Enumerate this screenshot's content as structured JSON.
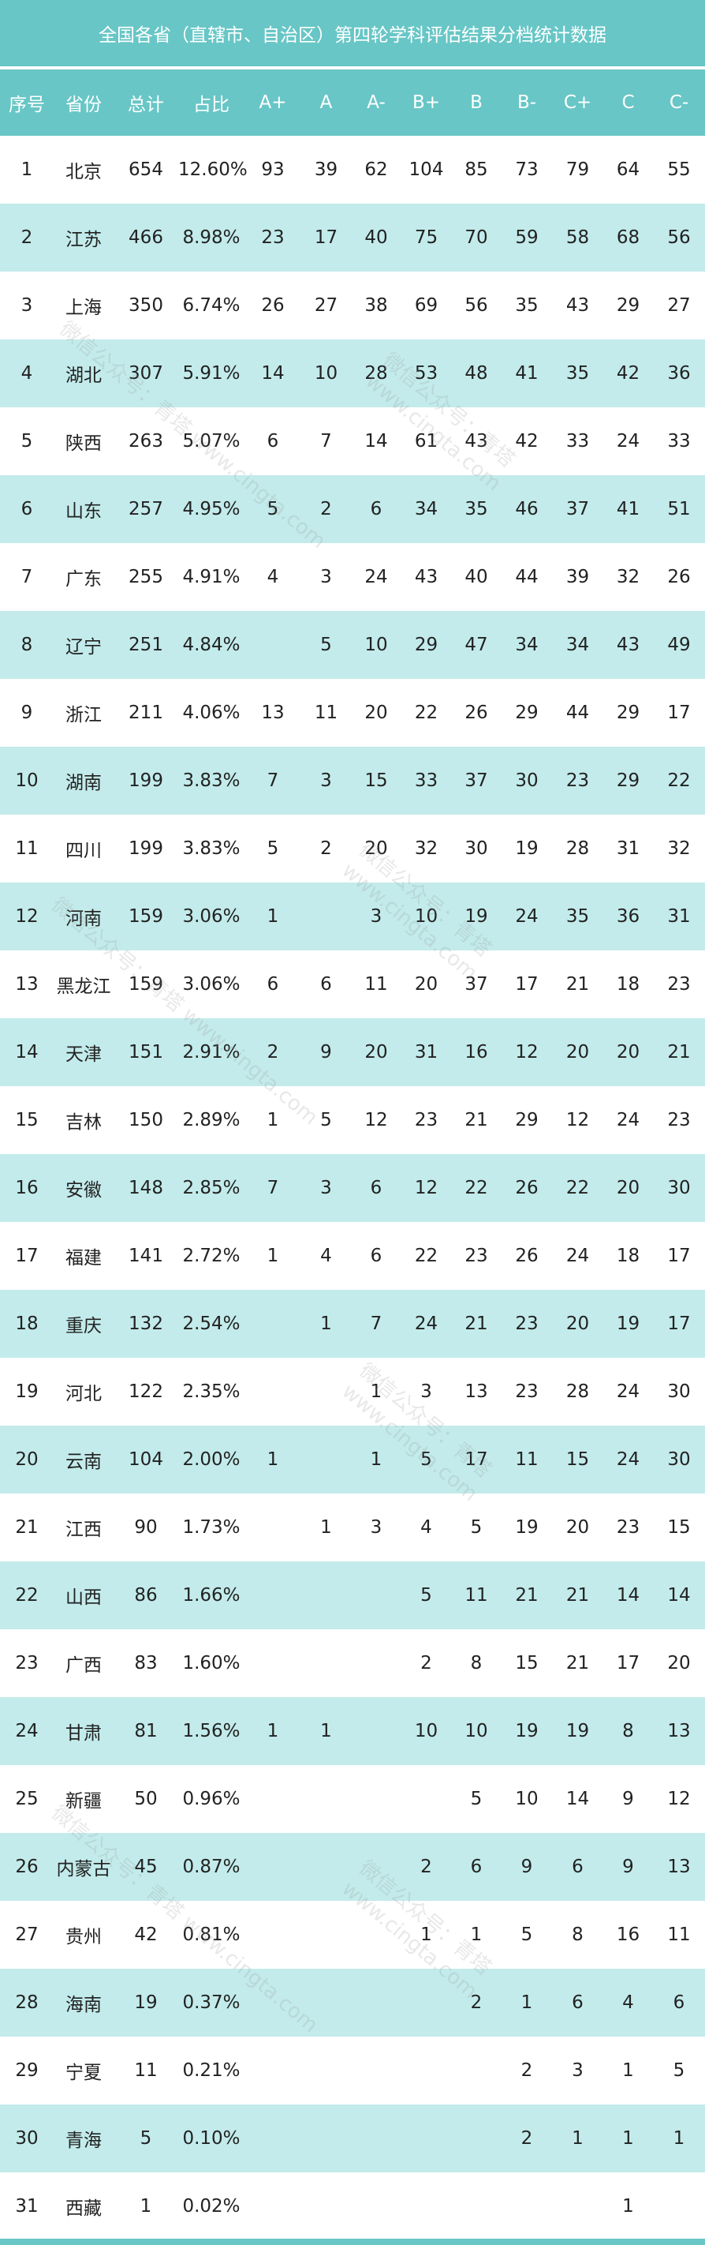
{
  "title": "全国各省（直辖市、自治区）第四轮学科评估结果分档统计数据",
  "columns": [
    "序号",
    "省份",
    "总计",
    "占比",
    "A+",
    "A",
    "A-",
    "B+",
    "B",
    "B-",
    "C+",
    "C",
    "C-"
  ],
  "rows": [
    [
      "1",
      "北京",
      "654",
      "12.60%",
      "93",
      "39",
      "62",
      "104",
      "85",
      "73",
      "79",
      "64",
      "55"
    ],
    [
      "2",
      "江苏",
      "466",
      "8.98%",
      "23",
      "17",
      "40",
      "75",
      "70",
      "59",
      "58",
      "68",
      "56"
    ],
    [
      "3",
      "上海",
      "350",
      "6.74%",
      "26",
      "27",
      "38",
      "69",
      "56",
      "35",
      "43",
      "29",
      "27"
    ],
    [
      "4",
      "湖北",
      "307",
      "5.91%",
      "14",
      "10",
      "28",
      "53",
      "48",
      "41",
      "35",
      "42",
      "36"
    ],
    [
      "5",
      "陕西",
      "263",
      "5.07%",
      "6",
      "7",
      "14",
      "61",
      "43",
      "42",
      "33",
      "24",
      "33"
    ],
    [
      "6",
      "山东",
      "257",
      "4.95%",
      "5",
      "2",
      "6",
      "34",
      "35",
      "46",
      "37",
      "41",
      "51"
    ],
    [
      "7",
      "广东",
      "255",
      "4.91%",
      "4",
      "3",
      "24",
      "43",
      "40",
      "44",
      "39",
      "32",
      "26"
    ],
    [
      "8",
      "辽宁",
      "251",
      "4.84%",
      "",
      "5",
      "10",
      "29",
      "47",
      "34",
      "34",
      "43",
      "49"
    ],
    [
      "9",
      "浙江",
      "211",
      "4.06%",
      "13",
      "11",
      "20",
      "22",
      "26",
      "29",
      "44",
      "29",
      "17"
    ],
    [
      "10",
      "湖南",
      "199",
      "3.83%",
      "7",
      "3",
      "15",
      "33",
      "37",
      "30",
      "23",
      "29",
      "22"
    ],
    [
      "11",
      "四川",
      "199",
      "3.83%",
      "5",
      "2",
      "20",
      "32",
      "30",
      "19",
      "28",
      "31",
      "32"
    ],
    [
      "12",
      "河南",
      "159",
      "3.06%",
      "1",
      "",
      "3",
      "10",
      "19",
      "24",
      "35",
      "36",
      "31"
    ],
    [
      "13",
      "黑龙江",
      "159",
      "3.06%",
      "6",
      "6",
      "11",
      "20",
      "37",
      "17",
      "21",
      "18",
      "23"
    ],
    [
      "14",
      "天津",
      "151",
      "2.91%",
      "2",
      "9",
      "20",
      "31",
      "16",
      "12",
      "20",
      "20",
      "21"
    ],
    [
      "15",
      "吉林",
      "150",
      "2.89%",
      "1",
      "5",
      "12",
      "23",
      "21",
      "29",
      "12",
      "24",
      "23"
    ],
    [
      "16",
      "安徽",
      "148",
      "2.85%",
      "7",
      "3",
      "6",
      "12",
      "22",
      "26",
      "22",
      "20",
      "30"
    ],
    [
      "17",
      "福建",
      "141",
      "2.72%",
      "1",
      "4",
      "6",
      "22",
      "23",
      "26",
      "24",
      "18",
      "17"
    ],
    [
      "18",
      "重庆",
      "132",
      "2.54%",
      "",
      "1",
      "7",
      "24",
      "21",
      "23",
      "20",
      "19",
      "17"
    ],
    [
      "19",
      "河北",
      "122",
      "2.35%",
      "",
      "",
      "1",
      "3",
      "13",
      "23",
      "28",
      "24",
      "30"
    ],
    [
      "20",
      "云南",
      "104",
      "2.00%",
      "1",
      "",
      "1",
      "5",
      "17",
      "11",
      "15",
      "24",
      "30"
    ],
    [
      "21",
      "江西",
      "90",
      "1.73%",
      "",
      "1",
      "3",
      "4",
      "5",
      "19",
      "20",
      "23",
      "15"
    ],
    [
      "22",
      "山西",
      "86",
      "1.66%",
      "",
      "",
      "",
      "5",
      "11",
      "21",
      "21",
      "14",
      "14"
    ],
    [
      "23",
      "广西",
      "83",
      "1.60%",
      "",
      "",
      "",
      "2",
      "8",
      "15",
      "21",
      "17",
      "20"
    ],
    [
      "24",
      "甘肃",
      "81",
      "1.56%",
      "1",
      "1",
      "",
      "10",
      "10",
      "19",
      "19",
      "8",
      "13"
    ],
    [
      "25",
      "新疆",
      "50",
      "0.96%",
      "",
      "",
      "",
      "",
      "5",
      "10",
      "14",
      "9",
      "12"
    ],
    [
      "26",
      "内蒙古",
      "45",
      "0.87%",
      "",
      "",
      "",
      "2",
      "6",
      "9",
      "6",
      "9",
      "13"
    ],
    [
      "27",
      "贵州",
      "42",
      "0.81%",
      "",
      "",
      "",
      "1",
      "1",
      "5",
      "8",
      "16",
      "11"
    ],
    [
      "28",
      "海南",
      "19",
      "0.37%",
      "",
      "",
      "",
      "",
      "2",
      "1",
      "6",
      "4",
      "6"
    ],
    [
      "29",
      "宁夏",
      "11",
      "0.21%",
      "",
      "",
      "",
      "",
      "",
      "2",
      "3",
      "1",
      "5"
    ],
    [
      "30",
      "青海",
      "5",
      "0.10%",
      "",
      "",
      "",
      "",
      "",
      "2",
      "1",
      "1",
      "1"
    ],
    [
      "31",
      "西藏",
      "1",
      "0.02%",
      "",
      "",
      "",
      "",
      "",
      "",
      "",
      "1",
      ""
    ]
  ],
  "watermark": "微信公众号：青塔 www.cingta.com",
  "colors": {
    "header": "#68c6c6",
    "stripe": "#c3ebeb",
    "text": "#222222"
  }
}
